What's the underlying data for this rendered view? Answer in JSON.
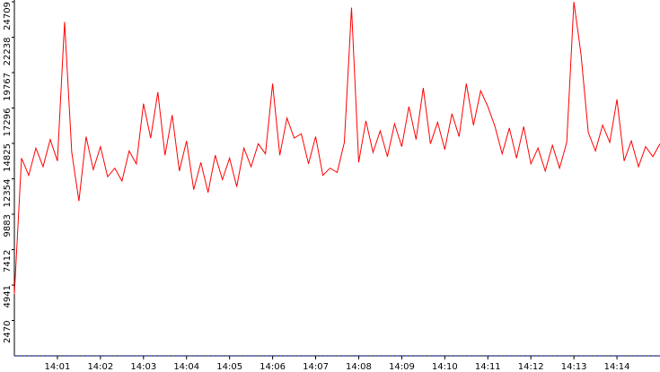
{
  "chart_data": {
    "type": "line",
    "x": [
      0,
      10,
      20,
      30,
      40,
      50,
      60,
      70,
      80,
      90,
      100,
      110,
      120,
      130,
      140,
      150,
      160,
      170,
      180,
      190,
      200,
      210,
      220,
      230,
      240,
      250,
      260,
      270,
      280,
      290,
      300,
      310,
      320,
      330,
      340,
      350,
      360,
      370,
      380,
      390,
      400,
      410,
      420,
      430,
      440,
      450,
      460,
      470,
      480,
      490,
      500,
      510,
      520,
      530,
      540,
      550,
      560,
      570,
      580,
      590,
      600,
      610,
      620,
      630,
      640,
      650,
      660,
      670,
      680,
      690,
      700,
      710,
      720,
      730,
      740,
      750,
      760,
      770,
      780,
      790,
      800,
      810,
      820,
      830,
      840,
      850,
      860,
      870,
      880,
      890,
      900
    ],
    "series": [
      {
        "color": "#ff0000",
        "values": [
          4300,
          13800,
          12600,
          14500,
          13200,
          15100,
          13600,
          23300,
          14200,
          10800,
          15300,
          13000,
          14600,
          12500,
          13100,
          12200,
          14300,
          13400,
          17600,
          15200,
          18400,
          14000,
          16800,
          12900,
          15000,
          11600,
          13500,
          11400,
          14000,
          12300,
          13800,
          11800,
          14500,
          13200,
          14800,
          14100,
          19000,
          14000,
          16600,
          15200,
          15500,
          13400,
          15300,
          12600,
          13100,
          12800,
          14900,
          24300,
          13500,
          16400,
          14200,
          15700,
          13900,
          16200,
          14600,
          17400,
          15100,
          18700,
          14800,
          16300,
          14400,
          16900,
          15300,
          19000,
          16100,
          18500,
          17400,
          16000,
          14100,
          15900,
          13800,
          16000,
          13400,
          14500,
          12900,
          14700,
          13100,
          14900,
          24700,
          21000,
          15600,
          14300,
          16100,
          14900,
          17900,
          13600,
          15000,
          13200,
          14600,
          13900,
          14800
        ]
      },
      {
        "color": "#00008b",
        "values": [
          0,
          0,
          0,
          0,
          0,
          0,
          0,
          0,
          0,
          0,
          0,
          0,
          0,
          0,
          0,
          0,
          0,
          0,
          0,
          0,
          0,
          0,
          0,
          0,
          0,
          0,
          0,
          0,
          0,
          0,
          0,
          0,
          0,
          0,
          0,
          0,
          0,
          0,
          0,
          0,
          0,
          0,
          0,
          0,
          0,
          0,
          0,
          0,
          0,
          0,
          0,
          0,
          0,
          0,
          0,
          0,
          0,
          0,
          0,
          0,
          0,
          0,
          0,
          0,
          0,
          0,
          0,
          0,
          0,
          0,
          0,
          0,
          0,
          0,
          0,
          0,
          0,
          0,
          0,
          0,
          0,
          0,
          0,
          0,
          0,
          0,
          0,
          0,
          0,
          0,
          0
        ]
      }
    ],
    "xlim": [
      0,
      900
    ],
    "xticks": [
      {
        "value": 60,
        "label": "14:01"
      },
      {
        "value": 120,
        "label": "14:02"
      },
      {
        "value": 180,
        "label": "14:03"
      },
      {
        "value": 240,
        "label": "14:04"
      },
      {
        "value": 300,
        "label": "14:05"
      },
      {
        "value": 360,
        "label": "14:06"
      },
      {
        "value": 420,
        "label": "14:07"
      },
      {
        "value": 480,
        "label": "14:08"
      },
      {
        "value": 540,
        "label": "14:09"
      },
      {
        "value": 600,
        "label": "14:10"
      },
      {
        "value": 660,
        "label": "14:11"
      },
      {
        "value": 720,
        "label": "14:12"
      },
      {
        "value": 780,
        "label": "14:13"
      },
      {
        "value": 840,
        "label": "14:14"
      }
    ],
    "ylim": [
      0,
      24709
    ],
    "yticks": [
      2470,
      4941,
      7412,
      9883,
      12354,
      14825,
      17296,
      19767,
      22238,
      24709
    ]
  }
}
